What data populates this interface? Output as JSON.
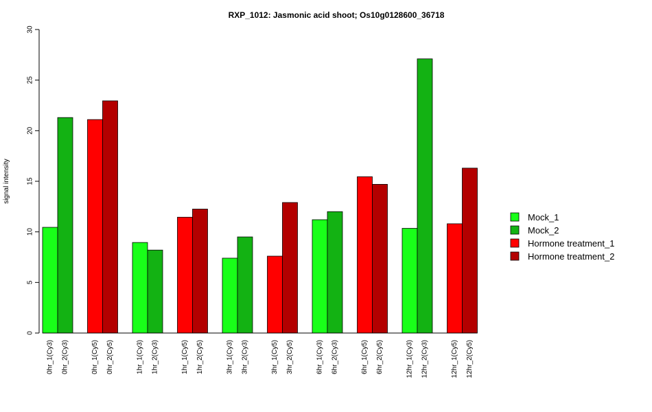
{
  "chart_data": {
    "type": "bar",
    "title": "RXP_1012: Jasmonic acid shoot; Os10g0128600_36718",
    "xlabel": "",
    "ylabel": "signal intensity",
    "ylim": [
      0,
      30
    ],
    "yticks": [
      0,
      5,
      10,
      15,
      20,
      25,
      30
    ],
    "grid": false,
    "legend_position": "right",
    "legend": [
      {
        "name": "Mock_1",
        "color": "#19ff19"
      },
      {
        "name": "Mock_2",
        "color": "#13b213"
      },
      {
        "name": "Hormone treatment_1",
        "color": "#ff0000"
      },
      {
        "name": "Hormone treatment_2",
        "color": "#b30000"
      }
    ],
    "categories": [
      "0hr_1(Cy3)",
      "0hr_2(Cy3)",
      "0hr_1(Cy5)",
      "0hr_2(Cy5)",
      "1hr_1(Cy3)",
      "1hr_2(Cy3)",
      "1hr_1(Cy5)",
      "1hr_2(Cy5)",
      "3hr_1(Cy3)",
      "3hr_2(Cy3)",
      "3hr_1(Cy5)",
      "3hr_2(Cy5)",
      "6hr_1(Cy3)",
      "6hr_2(Cy3)",
      "6hr_1(Cy5)",
      "6hr_2(Cy5)",
      "12hr_1(Cy3)",
      "12hr_2(Cy3)",
      "12hr_1(Cy5)",
      "12hr_2(Cy5)"
    ],
    "values": [
      10.45,
      21.3,
      21.1,
      22.95,
      8.95,
      8.2,
      11.45,
      12.25,
      7.4,
      9.5,
      7.6,
      12.9,
      11.2,
      12.0,
      15.45,
      14.7,
      10.35,
      27.1,
      10.8,
      16.3
    ],
    "bar_series": [
      "Mock_1",
      "Mock_2",
      "Hormone treatment_1",
      "Hormone treatment_2",
      "Mock_1",
      "Mock_2",
      "Hormone treatment_1",
      "Hormone treatment_2",
      "Mock_1",
      "Mock_2",
      "Hormone treatment_1",
      "Hormone treatment_2",
      "Mock_1",
      "Mock_2",
      "Hormone treatment_1",
      "Hormone treatment_2",
      "Mock_1",
      "Mock_2",
      "Hormone treatment_1",
      "Hormone treatment_2"
    ]
  }
}
